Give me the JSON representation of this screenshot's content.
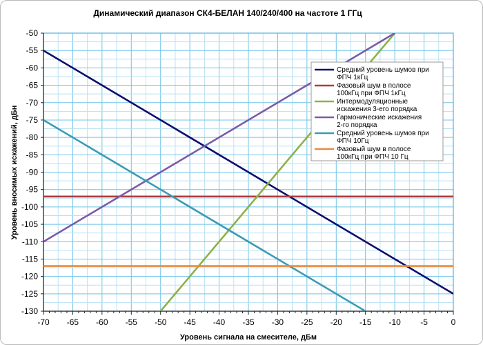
{
  "chart_data": {
    "type": "line",
    "title": "Динамический диапазон СК4-БЕЛАН 140/240/400 на частоте 1 ГГц",
    "xlabel": "Уровень сигнала на смесителе, дБм",
    "ylabel": "Уровень вносимых искажений, дБн",
    "xlim": [
      -70,
      0
    ],
    "ylim": [
      -130,
      -50
    ],
    "x_ticks": [
      -70,
      -65,
      -60,
      -55,
      -50,
      -45,
      -40,
      -35,
      -30,
      -25,
      -20,
      -15,
      -10,
      -5,
      0
    ],
    "y_ticks": [
      -50,
      -55,
      -60,
      -65,
      -70,
      -75,
      -80,
      -85,
      -90,
      -95,
      -100,
      -105,
      -110,
      -115,
      -120,
      -125,
      -130
    ],
    "grid": true,
    "legend_position": "right",
    "series": [
      {
        "name_lines": [
          "Средний уровень шумов при",
          "ФПЧ 1кГц"
        ],
        "color": "#0c0f6e",
        "x": [
          -70,
          0
        ],
        "y": [
          -55,
          -125
        ]
      },
      {
        "name_lines": [
          "Фазовый шум в полосе",
          "100кГц при ФПЧ 1кГц"
        ],
        "color": "#b03a3a",
        "x": [
          -70,
          0
        ],
        "y": [
          -97,
          -97
        ]
      },
      {
        "name_lines": [
          "Интермодуляционные",
          "искажения 3-его порядка"
        ],
        "color": "#8db048",
        "x": [
          -50,
          -10
        ],
        "y": [
          -130,
          -50
        ]
      },
      {
        "name_lines": [
          "  Гармонические искажения",
          "2-го порядка"
        ],
        "color": "#7b5aa8",
        "x": [
          -70,
          -10
        ],
        "y": [
          -110,
          -50
        ]
      },
      {
        "name_lines": [
          "Средний уровень шумов при",
          "ФПЧ 10Гц"
        ],
        "color": "#3c9bb4",
        "x": [
          -70,
          -15
        ],
        "y": [
          -75,
          -130
        ]
      },
      {
        "name_lines": [
          "Фазовый шум в полосе",
          "100кГц при ФПЧ 10 Гц"
        ],
        "color": "#e98a3c",
        "x": [
          -70,
          0
        ],
        "y": [
          -117,
          -117
        ]
      }
    ]
  }
}
